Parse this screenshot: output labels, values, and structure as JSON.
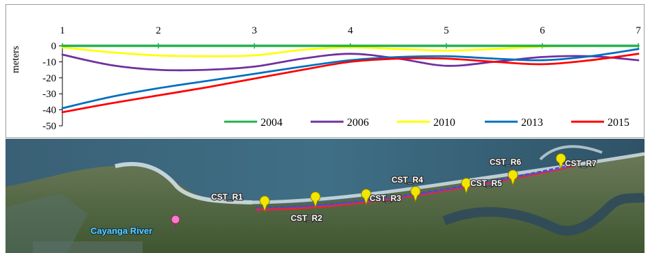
{
  "chart_data": {
    "type": "line",
    "xlabel": "",
    "ylabel": "meters",
    "x": [
      1,
      2,
      3,
      4,
      5,
      6,
      7
    ],
    "xlim": [
      1,
      7
    ],
    "ylim": [
      -50,
      0
    ],
    "yticks": [
      0,
      -10,
      -20,
      -30,
      -40,
      -50
    ],
    "legend_position": "bottom-right",
    "grid": false,
    "series": [
      {
        "name": "2004",
        "color": "#22b14c",
        "x": [
          1,
          2,
          3,
          4,
          5,
          6,
          7
        ],
        "y": [
          0,
          0,
          0,
          0,
          0,
          0,
          0
        ]
      },
      {
        "name": "2006",
        "color": "#7030a0",
        "x": [
          1,
          1.5,
          2,
          2.5,
          3,
          3.5,
          4,
          4.5,
          5,
          5.5,
          6,
          6.5,
          7
        ],
        "y": [
          -5.5,
          -12,
          -15,
          -15,
          -13,
          -8,
          -5,
          -8,
          -12.5,
          -10,
          -7,
          -6.5,
          -9
        ]
      },
      {
        "name": "2010",
        "color": "#ffff00",
        "x": [
          1,
          1.5,
          2,
          2.5,
          3,
          3.5,
          4,
          4.5,
          5,
          5.5,
          6,
          6.5,
          7
        ],
        "y": [
          -1,
          -4,
          -6,
          -6.5,
          -6,
          -2.5,
          -1,
          -2,
          -3,
          -2,
          -0.5,
          0,
          0
        ]
      },
      {
        "name": "2013",
        "color": "#0070c0",
        "x": [
          1,
          1.5,
          2,
          2.5,
          3,
          3.5,
          4,
          4.5,
          5,
          5.5,
          6,
          6.5,
          7
        ],
        "y": [
          -39,
          -32,
          -26.5,
          -22,
          -17.5,
          -13,
          -9,
          -7,
          -6.5,
          -8,
          -9,
          -6.5,
          -2
        ]
      },
      {
        "name": "2015",
        "color": "#ff0000",
        "x": [
          1,
          1.5,
          2,
          2.5,
          3,
          3.5,
          4,
          4.5,
          5,
          5.5,
          6,
          6.5,
          7
        ],
        "y": [
          -41.5,
          -36,
          -31,
          -26,
          -20.5,
          -15,
          -10,
          -8,
          -8,
          -10,
          -11.5,
          -9,
          -5
        ]
      }
    ]
  },
  "map": {
    "river_label": "Cayanga River",
    "stations": [
      "CST_R1",
      "CST_R2",
      "CST_R3",
      "CST_R4",
      "CST_R5",
      "CST_R6",
      "CST_R7"
    ],
    "colors": {
      "sea": "#3c5f7a",
      "land": "#4a6a3e",
      "surf": "#d8e6ea",
      "pin": "#f2e600"
    }
  }
}
